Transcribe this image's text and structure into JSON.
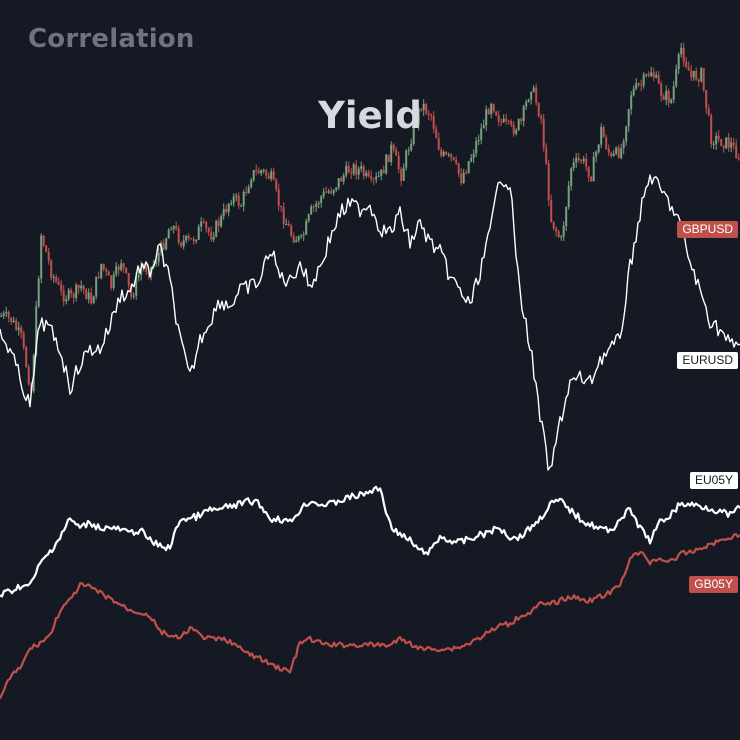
{
  "header": {
    "subtitle": "Correlation",
    "title": "Yield"
  },
  "chart_data": {
    "type": "line",
    "title": "Yield",
    "subtitle": "Correlation",
    "grid": false,
    "axes_visible": false,
    "series": [
      {
        "name": "GBPUSD",
        "style": "candlestick",
        "color": "#c0504b",
        "up_color": "#76a37e",
        "x": [
          0,
          10,
          20,
          30,
          40,
          50,
          60,
          70,
          80,
          90,
          100,
          110,
          120,
          130,
          140,
          150,
          160,
          170,
          180,
          190,
          200,
          210,
          220,
          230,
          240,
          250,
          260,
          270,
          280,
          290,
          300,
          310,
          320,
          330,
          340,
          350,
          360,
          370,
          380,
          390,
          400,
          410,
          420,
          430,
          440,
          450,
          460,
          470,
          480,
          490,
          500,
          510,
          520,
          530,
          540,
          550,
          560,
          570,
          580,
          590,
          600,
          610,
          620,
          630,
          640,
          650,
          660,
          670,
          680,
          690,
          700,
          710,
          720,
          730,
          740
        ],
        "values": [
          40,
          39,
          34,
          20,
          62,
          52,
          46,
          45,
          48,
          44,
          54,
          48,
          55,
          45,
          53,
          53,
          58,
          65,
          60,
          60,
          64,
          62,
          66,
          72,
          70,
          78,
          79,
          77,
          68,
          62,
          60,
          68,
          72,
          74,
          77,
          80,
          79,
          75,
          78,
          85,
          78,
          88,
          97,
          94,
          83,
          82,
          77,
          83,
          90,
          98,
          92,
          90,
          92,
          102,
          93,
          66,
          60,
          80,
          82,
          78,
          90,
          82,
          85,
          100,
          102,
          106,
          100,
          98,
          112,
          104,
          105,
          88,
          87,
          86,
          82
        ]
      },
      {
        "name": "EURUSD",
        "color": "#ffffff",
        "x": [
          0,
          10,
          20,
          30,
          40,
          50,
          60,
          70,
          80,
          90,
          100,
          110,
          120,
          130,
          140,
          150,
          160,
          170,
          180,
          190,
          200,
          210,
          220,
          230,
          240,
          250,
          260,
          270,
          280,
          290,
          300,
          310,
          320,
          330,
          340,
          350,
          360,
          370,
          380,
          390,
          400,
          410,
          420,
          430,
          440,
          450,
          460,
          470,
          480,
          490,
          500,
          510,
          520,
          530,
          540,
          550,
          560,
          570,
          580,
          590,
          600,
          610,
          620,
          630,
          640,
          650,
          660,
          670,
          680,
          690,
          700,
          710,
          720,
          730,
          740
        ],
        "values": [
          27,
          24,
          18,
          12,
          30,
          28,
          24,
          16,
          21,
          24,
          24,
          29,
          35,
          36,
          41,
          40,
          45,
          38,
          26,
          18,
          26,
          30,
          34,
          33,
          36,
          37,
          38,
          45,
          39,
          38,
          42,
          37,
          41,
          47,
          52,
          54,
          53,
          54,
          49,
          48,
          52,
          46,
          50,
          46,
          44,
          39,
          36,
          33,
          40,
          48,
          60,
          58,
          35,
          25,
          10,
          -2,
          9,
          17,
          18,
          17,
          22,
          24,
          26,
          41,
          52,
          60,
          57,
          54,
          50,
          42,
          36,
          30,
          28,
          25,
          25
        ]
      },
      {
        "name": "EU05Y",
        "color": "#ffffff",
        "x": [
          0,
          10,
          20,
          30,
          40,
          50,
          60,
          70,
          80,
          90,
          100,
          110,
          120,
          130,
          140,
          150,
          160,
          170,
          180,
          190,
          200,
          210,
          220,
          230,
          240,
          250,
          260,
          270,
          280,
          290,
          300,
          310,
          320,
          330,
          340,
          350,
          360,
          370,
          380,
          390,
          400,
          410,
          420,
          430,
          440,
          450,
          460,
          470,
          480,
          490,
          500,
          510,
          520,
          530,
          540,
          550,
          560,
          570,
          580,
          590,
          600,
          610,
          620,
          630,
          640,
          650,
          660,
          670,
          680,
          690,
          700,
          710,
          720,
          730,
          740
        ],
        "values": [
          -0.62,
          -0.6,
          -0.57,
          -0.57,
          -0.45,
          -0.38,
          -0.3,
          -0.2,
          -0.25,
          -0.22,
          -0.25,
          -0.25,
          -0.26,
          -0.28,
          -0.26,
          -0.32,
          -0.35,
          -0.36,
          -0.2,
          -0.2,
          -0.18,
          -0.15,
          -0.15,
          -0.13,
          -0.12,
          -0.1,
          -0.12,
          -0.2,
          -0.2,
          -0.22,
          -0.15,
          -0.1,
          -0.12,
          -0.12,
          -0.1,
          -0.08,
          -0.07,
          -0.05,
          -0.03,
          -0.23,
          -0.29,
          -0.32,
          -0.38,
          -0.38,
          -0.3,
          -0.32,
          -0.33,
          -0.31,
          -0.29,
          -0.27,
          -0.25,
          -0.3,
          -0.3,
          -0.25,
          -0.2,
          -0.12,
          -0.1,
          -0.15,
          -0.2,
          -0.23,
          -0.25,
          -0.27,
          -0.2,
          -0.15,
          -0.25,
          -0.32,
          -0.22,
          -0.18,
          -0.12,
          -0.12,
          -0.13,
          -0.14,
          -0.16,
          -0.18,
          -0.14
        ]
      },
      {
        "name": "GB05Y",
        "color": "#c0504b",
        "x": [
          0,
          10,
          20,
          30,
          40,
          50,
          60,
          70,
          80,
          90,
          100,
          110,
          120,
          130,
          140,
          150,
          160,
          170,
          180,
          190,
          200,
          210,
          220,
          230,
          240,
          250,
          260,
          270,
          280,
          290,
          300,
          310,
          320,
          330,
          340,
          350,
          360,
          370,
          380,
          390,
          400,
          410,
          420,
          430,
          440,
          450,
          460,
          470,
          480,
          490,
          500,
          510,
          520,
          530,
          540,
          550,
          560,
          570,
          580,
          590,
          600,
          610,
          620,
          630,
          640,
          650,
          660,
          670,
          680,
          690,
          700,
          710,
          720,
          730,
          740
        ],
        "values": [
          -1.2,
          -1.1,
          -1.05,
          -0.95,
          -0.92,
          -0.88,
          -0.75,
          -0.7,
          -0.62,
          -0.63,
          -0.66,
          -0.69,
          -0.72,
          -0.75,
          -0.76,
          -0.78,
          -0.86,
          -0.88,
          -0.9,
          -0.84,
          -0.88,
          -0.9,
          -0.9,
          -0.91,
          -0.95,
          -0.98,
          -1.0,
          -1.03,
          -1.05,
          -1.07,
          -0.92,
          -0.9,
          -0.92,
          -0.93,
          -0.93,
          -0.93,
          -0.93,
          -0.93,
          -0.93,
          -0.93,
          -0.9,
          -0.92,
          -0.95,
          -0.95,
          -0.95,
          -0.95,
          -0.94,
          -0.92,
          -0.89,
          -0.86,
          -0.83,
          -0.82,
          -0.78,
          -0.76,
          -0.72,
          -0.72,
          -0.7,
          -0.68,
          -0.69,
          -0.7,
          -0.68,
          -0.66,
          -0.62,
          -0.48,
          -0.45,
          -0.5,
          -0.48,
          -0.5,
          -0.46,
          -0.45,
          -0.43,
          -0.41,
          -0.39,
          -0.37,
          -0.36
        ]
      }
    ]
  }
}
